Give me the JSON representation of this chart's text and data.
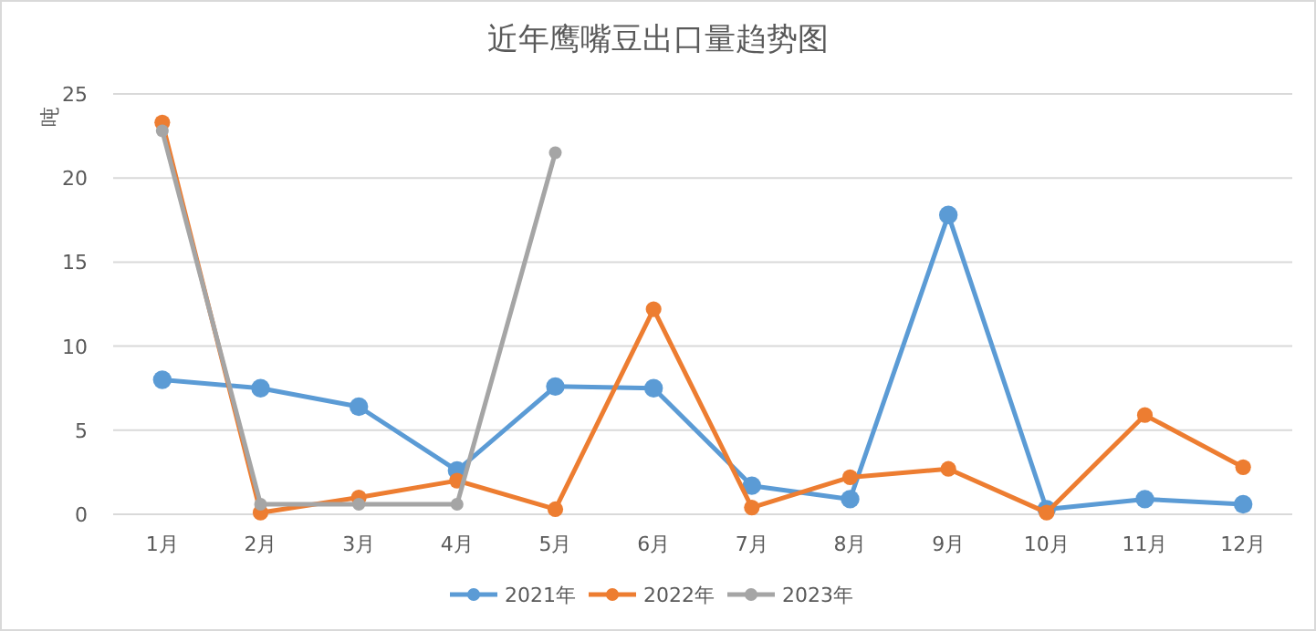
{
  "chart_data": {
    "type": "line",
    "title": "近年鹰嘴豆出口量趋势图",
    "ylabel": "吨",
    "categories": [
      "1月",
      "2月",
      "3月",
      "4月",
      "5月",
      "6月",
      "7月",
      "8月",
      "9月",
      "10月",
      "11月",
      "12月"
    ],
    "series": [
      {
        "name": "2021年",
        "color": "#5b9bd5",
        "values": [
          8.0,
          7.5,
          6.4,
          2.6,
          7.6,
          7.5,
          1.7,
          0.9,
          17.8,
          0.3,
          0.9,
          0.6
        ]
      },
      {
        "name": "2022年",
        "color": "#ed7d31",
        "values": [
          23.3,
          0.1,
          1.0,
          2.0,
          0.3,
          12.2,
          0.4,
          2.2,
          2.7,
          0.1,
          5.9,
          2.8
        ]
      },
      {
        "name": "2023年",
        "color": "#a5a5a5",
        "values": [
          22.8,
          0.6,
          0.6,
          0.6,
          21.5,
          null,
          null,
          null,
          null,
          null,
          null,
          null
        ]
      }
    ],
    "ylim": [
      0,
      25
    ],
    "yticks": [
      0,
      5,
      10,
      15,
      20,
      25
    ],
    "grid": "y",
    "legend": "bottom",
    "marker": "circle",
    "line_style": "solid"
  }
}
